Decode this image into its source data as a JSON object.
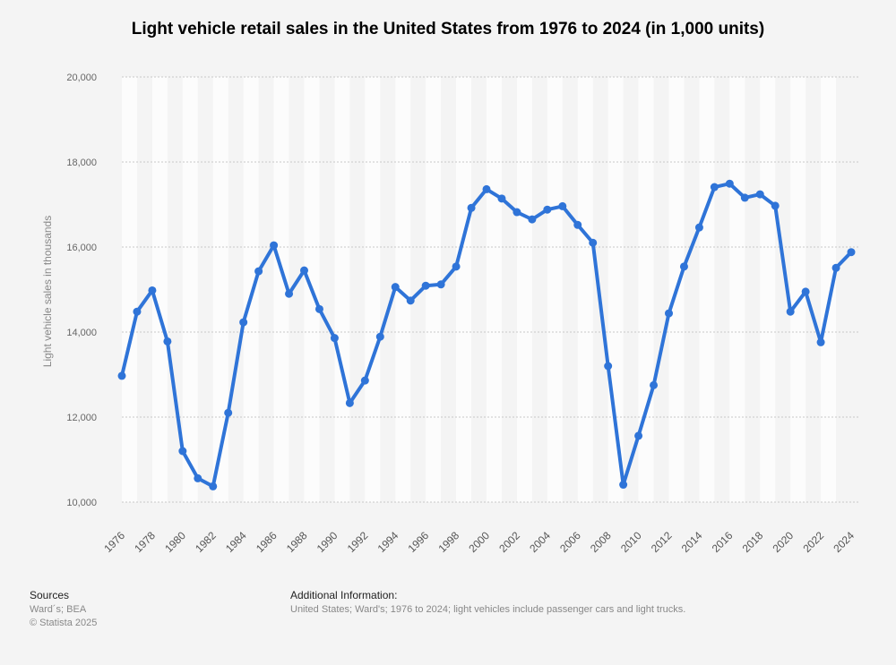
{
  "chart_data": {
    "type": "line",
    "title": "Light vehicle retail sales in the United States from 1976 to 2024 (in 1,000 units)",
    "xlabel": "",
    "ylabel": "Light vehicle sales in thousands",
    "ylim": [
      10000,
      20000
    ],
    "yticks": [
      10000,
      12000,
      14000,
      16000,
      18000,
      20000
    ],
    "ytick_labels": [
      "10,000",
      "12,000",
      "14,000",
      "16,000",
      "18,000",
      "20,000"
    ],
    "xtick_labels": [
      "1976",
      "1978",
      "1980",
      "1982",
      "1984",
      "1986",
      "1988",
      "1990",
      "1992",
      "1994",
      "1996",
      "1998",
      "2000",
      "2002",
      "2004",
      "2006",
      "2008",
      "2010",
      "2012",
      "2014",
      "2016",
      "2018",
      "2020",
      "2022",
      "2024"
    ],
    "grid": true,
    "line_color": "#2f74d8",
    "series": [
      {
        "name": "Light vehicle retail sales",
        "x": [
          1976,
          1977,
          1978,
          1979,
          1980,
          1981,
          1982,
          1983,
          1984,
          1985,
          1986,
          1987,
          1988,
          1989,
          1990,
          1991,
          1992,
          1993,
          1994,
          1995,
          1996,
          1997,
          1998,
          1999,
          2000,
          2001,
          2002,
          2003,
          2004,
          2005,
          2006,
          2007,
          2008,
          2009,
          2010,
          2011,
          2012,
          2013,
          2014,
          2015,
          2016,
          2017,
          2018,
          2019,
          2020,
          2021,
          2022,
          2023,
          2024
        ],
        "values": [
          12970,
          14480,
          14980,
          13780,
          11200,
          10560,
          10370,
          12100,
          14230,
          15430,
          16040,
          14900,
          15450,
          14540,
          13860,
          12330,
          12860,
          13890,
          15060,
          14740,
          15090,
          15120,
          15540,
          16920,
          17360,
          17140,
          16820,
          16650,
          16880,
          16960,
          16520,
          16100,
          13200,
          10410,
          11560,
          12750,
          14440,
          15540,
          16460,
          17410,
          17490,
          17160,
          17240,
          16970,
          14480,
          14950,
          13760,
          15510,
          15880
        ]
      }
    ]
  },
  "footer": {
    "sources_heading": "Sources",
    "sources_line1": "Ward´s; BEA",
    "sources_line2": "© Statista 2025",
    "additional_heading": "Additional Information:",
    "additional_text": "United States; Ward's; 1976 to 2024; light vehicles include passenger cars and light trucks."
  }
}
